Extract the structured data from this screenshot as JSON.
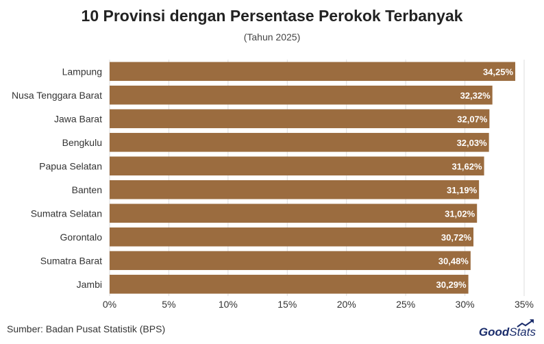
{
  "title": "10 Provinsi dengan Persentase Perokok Terbanyak",
  "subtitle": "(Tahun 2025)",
  "source": "Sumber: Badan Pusat Statistik (BPS)",
  "logo": {
    "part1": "Good",
    "part2": "Stats"
  },
  "colors": {
    "bar": "#9b6c3f",
    "label": "#ffffff",
    "grid": "#dddddd",
    "text": "#333333"
  },
  "chart_data": {
    "type": "bar",
    "orientation": "horizontal",
    "title": "10 Provinsi dengan Persentase Perokok Terbanyak",
    "subtitle": "(Tahun 2025)",
    "categories": [
      "Lampung",
      "Nusa Tenggara Barat",
      "Jawa Barat",
      "Bengkulu",
      "Papua Selatan",
      "Banten",
      "Sumatra Selatan",
      "Gorontalo",
      "Sumatra Barat",
      "Jambi"
    ],
    "values": [
      34.25,
      32.32,
      32.07,
      32.03,
      31.62,
      31.19,
      31.02,
      30.72,
      30.48,
      30.29
    ],
    "value_labels": [
      "34,25%",
      "32,32%",
      "32,07%",
      "32,03%",
      "31,62%",
      "31,19%",
      "31,02%",
      "30,72%",
      "30,48%",
      "30,29%"
    ],
    "xlim": [
      0,
      35
    ],
    "xticks": [
      0,
      5,
      10,
      15,
      20,
      25,
      30,
      35
    ],
    "xtick_labels": [
      "0%",
      "5%",
      "10%",
      "15%",
      "20%",
      "25%",
      "30%",
      "35%"
    ],
    "xlabel": "",
    "ylabel": "",
    "grid": true,
    "legend": false
  }
}
